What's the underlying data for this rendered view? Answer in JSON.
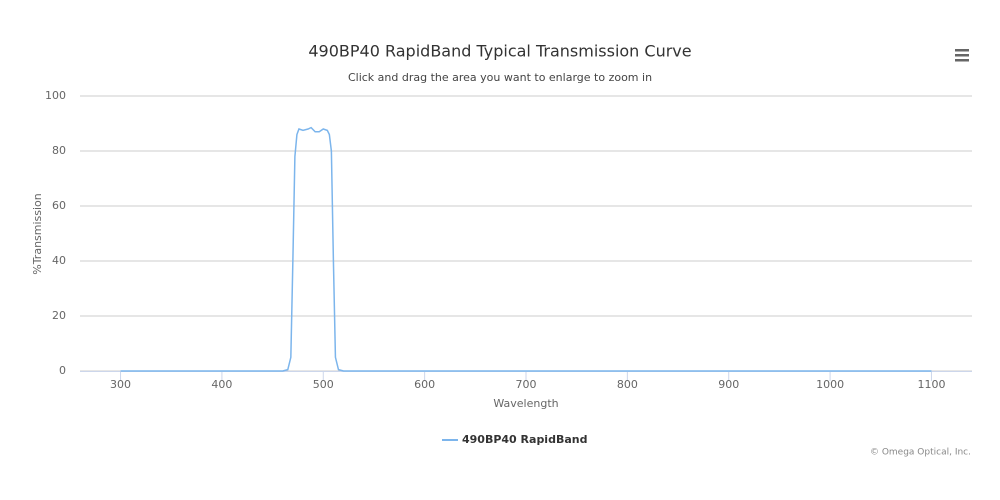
{
  "chart_data": {
    "type": "line",
    "title": "490BP40 RapidBand Typical Transmission Curve",
    "subtitle": "Click and drag the area you want to enlarge to zoom in",
    "x_label": "Wavelength",
    "y_label": "%Transmission",
    "credits": "© Omega Optical, Inc.",
    "x": [
      300,
      460,
      465,
      468,
      470,
      472,
      474,
      476,
      480,
      485,
      488,
      492,
      496,
      500,
      504,
      506,
      508,
      510,
      512,
      515,
      520,
      1100
    ],
    "series": [
      {
        "name": "490BP40 RapidBand",
        "color": "#7cb5ec",
        "values": [
          0,
          0,
          0.5,
          5,
          40,
          78,
          86,
          88,
          87.5,
          88,
          88.5,
          87,
          87,
          88,
          87.5,
          86,
          80,
          40,
          5,
          0.5,
          0,
          0
        ]
      }
    ],
    "xlim": [
      260,
      1140
    ],
    "xticks": [
      300,
      400,
      500,
      600,
      700,
      800,
      900,
      1000,
      1100
    ],
    "ylim": [
      0,
      100
    ],
    "yticks": [
      0,
      20,
      40,
      60,
      80,
      100
    ],
    "grid": true,
    "legend": "bottom"
  }
}
